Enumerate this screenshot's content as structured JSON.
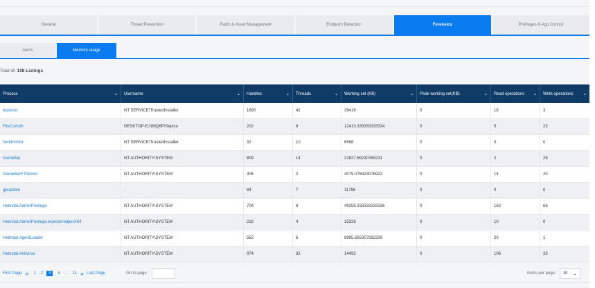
{
  "tabs": [
    "General",
    "Threat Prevention",
    "Patch & Asset Management",
    "Endpoint Detection",
    "Forensics",
    "Privileges & App Control"
  ],
  "active_tab": "Forensics",
  "subtabs": [
    "Alerts",
    "Memory usage"
  ],
  "active_subtab": "Memory usage",
  "summary": {
    "prefix": "Total of:",
    "count": "108 Listings"
  },
  "columns": [
    "Process",
    "Username",
    "Handles",
    "Threads",
    "Working set (KB)",
    "Peak working set(KB)",
    "Read operations",
    "Write operations"
  ],
  "rows": [
    [
      "explorer",
      "NT SERVICE\\TrustedInstaller",
      "1890",
      "42",
      "39416",
      "0",
      "18",
      "3"
    ],
    [
      "FileCoAuth",
      "DESKTOP-EJ1MQ6P\\Sepicu",
      "202",
      "8",
      "12413.333333333334",
      "0",
      "5",
      "23"
    ],
    [
      "fontdrvhost",
      "NT SERVICE\\TrustedInstaller",
      "32",
      "10",
      "6588",
      "0",
      "0",
      "0"
    ],
    [
      "GameBar",
      "NT AUTHORITY\\SYSTEM",
      "809",
      "14",
      "21827.69230769231",
      "0",
      "2",
      "25"
    ],
    [
      "GameBarFTServer",
      "NT AUTHORITY\\SYSTEM",
      "306",
      "2",
      "4075.076923076923",
      "0",
      "14",
      "20"
    ],
    [
      "gpupdate",
      "-",
      "84",
      "7",
      "11796",
      "0",
      "0",
      "0"
    ],
    [
      "Heimdal.AdminPrivilege",
      "NT AUTHORITY\\SYSTEM",
      "704",
      "8",
      "49259.333333333336",
      "0",
      "162",
      "66"
    ],
    [
      "Heimdal.AdminPrivilege.InjectorHelperX64",
      "NT AUTHORITY\\SYSTEM",
      "219",
      "4",
      "15328",
      "0",
      "10",
      "0"
    ],
    [
      "Heimdal.AgentLoader",
      "NT AUTHORITY\\SYSTEM",
      "562",
      "6",
      "8995.692307692309",
      "0",
      "20",
      "1"
    ],
    [
      "Heimdal.Antivirus",
      "NT AUTHORITY\\SYSTEM",
      "974",
      "32",
      "14492",
      "0",
      "106",
      "33"
    ]
  ],
  "pagination": {
    "first": "First Page",
    "last": "Last Page",
    "pages": [
      "1",
      "2",
      "3",
      "4",
      "...",
      "11"
    ],
    "current": "3",
    "goto_label": "Go to page:",
    "ipp_label": "Items per page:",
    "ipp_value": "10"
  },
  "colors": {
    "accent": "#0a7cf0",
    "header_bg": "#0f3b66",
    "link": "#1a7bd6"
  }
}
